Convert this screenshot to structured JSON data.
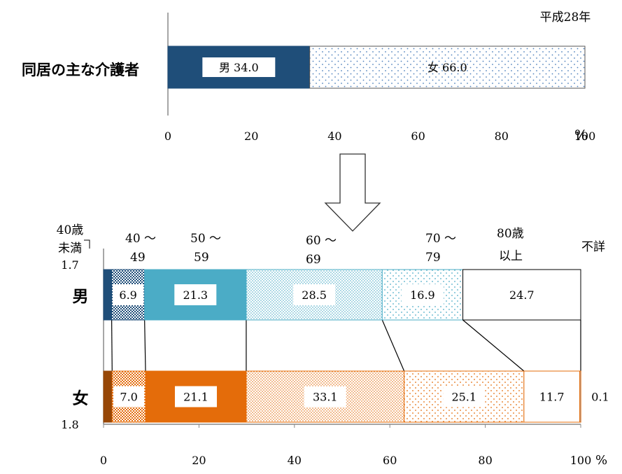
{
  "chart_data": [
    {
      "type": "bar",
      "orientation": "horizontal",
      "stacked": true,
      "title": "平成28年",
      "row_label": "同居の主な介護者",
      "categories": [
        "同居の主な介護者"
      ],
      "series": [
        {
          "name": "男",
          "values": [
            34.0
          ],
          "label": "男 34.0",
          "color": "#1f4e79",
          "pattern": "solid"
        },
        {
          "name": "女",
          "values": [
            66.0
          ],
          "label": "女  66.0",
          "color": "#4f81bd",
          "pattern": "dots"
        }
      ],
      "xlim": [
        0,
        100
      ],
      "xticks": [
        "0",
        "20",
        "40",
        "60",
        "80",
        "100"
      ],
      "unit": "%"
    },
    {
      "type": "bar",
      "orientation": "horizontal",
      "stacked": true,
      "categories": [
        "男",
        "女"
      ],
      "series": [
        {
          "name": "40歳未満",
          "values": [
            1.7,
            1.8
          ]
        },
        {
          "name": "40～49",
          "values": [
            6.9,
            7.0
          ]
        },
        {
          "name": "50～59",
          "values": [
            21.3,
            21.1
          ]
        },
        {
          "name": "60～69",
          "values": [
            28.5,
            33.1
          ]
        },
        {
          "name": "70～79",
          "values": [
            16.9,
            25.1
          ]
        },
        {
          "name": "80歳以上",
          "values": [
            24.7,
            11.7
          ]
        },
        {
          "name": "不詳",
          "values": [
            0.0,
            0.1
          ]
        }
      ],
      "value_labels": {
        "男": [
          "1.7",
          "6.9",
          "21.3",
          "28.5",
          "16.9",
          "24.7",
          ""
        ],
        "女": [
          "1.8",
          "7.0",
          "21.1",
          "33.1",
          "25.1",
          "11.7",
          "0.1"
        ]
      },
      "colors": {
        "男": [
          "#1f4e79",
          "#1f4e79",
          "#4bacc6",
          "#4bacc6",
          "#4bacc6",
          "#ffffff",
          "#ffffff"
        ],
        "女": [
          "#974706",
          "#e46c0a",
          "#e46c0a",
          "#e46c0a",
          "#e46c0a",
          "#ffffff",
          "#95b3d7"
        ]
      },
      "patterns": [
        "solid",
        "check",
        "solid",
        "dense",
        "sparse",
        "solid",
        "solid"
      ],
      "header_labels": {
        "under40": [
          "40歳",
          "未満"
        ],
        "age40": [
          "40 ～",
          "49"
        ],
        "age50": [
          "50 ～",
          "59"
        ],
        "age60": [
          "60 ～",
          "69"
        ],
        "age70": [
          "70 ～",
          "79"
        ],
        "age80": [
          "80歳",
          "以上"
        ],
        "unknown": "不詳"
      },
      "xlim": [
        0,
        100
      ],
      "xticks": [
        "0",
        "20",
        "40",
        "60",
        "80",
        "100"
      ],
      "unit": "%"
    }
  ]
}
